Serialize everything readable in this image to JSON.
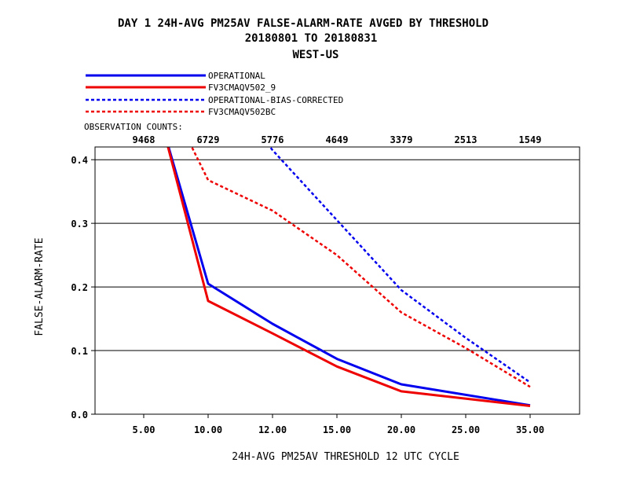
{
  "chart_data": {
    "type": "line",
    "title_lines": [
      "DAY 1   24H-AVG PM25AV FALSE-ALARM-RATE   AVGED BY THRESHOLD",
      "20180801 TO 20180831",
      "WEST-US"
    ],
    "xlabel": "24H-AVG PM25AV THRESHOLD     12 UTC CYCLE",
    "ylabel": "FALSE-ALARM-RATE",
    "categories": [
      "5.00",
      "10.00",
      "12.00",
      "15.00",
      "20.00",
      "25.00",
      "35.00"
    ],
    "ylim": [
      0,
      0.42
    ],
    "yticks": [
      "0.0",
      "0.1",
      "0.2",
      "0.3",
      "0.4"
    ],
    "ytick_values": [
      0,
      0.1,
      0.2,
      0.3,
      0.4
    ],
    "grid": "horizontal",
    "legend_position": "top-left",
    "observation_counts_label": "OBSERVATION COUNTS:",
    "observation_counts": [
      "9468",
      "6729",
      "5776",
      "4649",
      "3379",
      "2513",
      "1549"
    ],
    "series": [
      {
        "name": "OPERATIONAL",
        "color": "#0000ee",
        "style": "solid",
        "points": [
          [
            0.3,
            0.45
          ],
          [
            1,
            0.205
          ],
          [
            2,
            0.142
          ],
          [
            3,
            0.087
          ],
          [
            4,
            0.047
          ],
          [
            6,
            0.014
          ]
        ]
      },
      {
        "name": "FV3CMAQV502_9",
        "color": "#ee0000",
        "style": "solid",
        "points": [
          [
            0.3,
            0.45
          ],
          [
            1,
            0.178
          ],
          [
            2,
            0.127
          ],
          [
            3,
            0.075
          ],
          [
            4,
            0.036
          ],
          [
            6,
            0.013
          ]
        ]
      },
      {
        "name": "OPERATIONAL-BIAS-CORRECTED",
        "color": "#0000ee",
        "style": "dashed",
        "points": [
          [
            1.5,
            0.48
          ],
          [
            2,
            0.415
          ],
          [
            3,
            0.305
          ],
          [
            4,
            0.195
          ],
          [
            5,
            0.12
          ],
          [
            6,
            0.05
          ]
        ]
      },
      {
        "name": "FV3CMAQV502BC",
        "color": "#ee0000",
        "style": "dashed",
        "points": [
          [
            0.6,
            0.45
          ],
          [
            1,
            0.368
          ],
          [
            2,
            0.32
          ],
          [
            3,
            0.25
          ],
          [
            4,
            0.16
          ],
          [
            5,
            0.104
          ],
          [
            6,
            0.043
          ]
        ]
      }
    ]
  }
}
